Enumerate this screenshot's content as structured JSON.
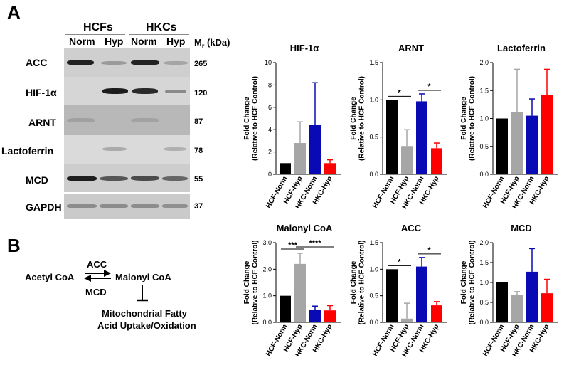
{
  "panel_a_label": "A",
  "panel_b_label": "B",
  "blot": {
    "groups": [
      "HCFs",
      "HKCs"
    ],
    "conditions": [
      "Norm",
      "Hyp",
      "Norm",
      "Hyp"
    ],
    "mr_header_main": "M",
    "mr_header_sub": "r",
    "mr_header_unit": "(kDa)",
    "rows": [
      {
        "label": "ACC",
        "mw": "265"
      },
      {
        "label": "HIF-1α",
        "mw": "120"
      },
      {
        "label": "ARNT",
        "mw": "87"
      },
      {
        "label": "Lactoferrin",
        "mw": "78"
      },
      {
        "label": "MCD",
        "mw": "55"
      },
      {
        "label": "GAPDH",
        "mw": "37"
      }
    ]
  },
  "pathway": {
    "substrate": "Acetyl CoA",
    "product": "Malonyl CoA",
    "forward_enzyme": "ACC",
    "reverse_enzyme": "MCD",
    "inhibited_line1": "Mitochondrial Fatty",
    "inhibited_line2": "Acid Uptake/Oxidation"
  },
  "colors": {
    "HCF-Norm": "#000000",
    "HCF-Hyp": "#a6a6a6",
    "HKC-Norm": "#0a0ab4",
    "HKC-Hyp": "#ff0000"
  },
  "chart_data": [
    {
      "type": "bar",
      "title": "HIF-1α",
      "ylabel": "Fold Change (Relative to HCF Control)",
      "categories": [
        "HCF-Norm",
        "HCF-Hyp",
        "HKC-Norm",
        "HKC-Hyp"
      ],
      "values": [
        1.0,
        2.8,
        4.4,
        1.0
      ],
      "errors": [
        0,
        1.9,
        3.8,
        0.3
      ],
      "ylim": [
        0,
        10
      ],
      "yticks": [
        "0",
        "2",
        "4",
        "6",
        "8",
        "10"
      ],
      "significance": []
    },
    {
      "type": "bar",
      "title": "ARNT",
      "ylabel": "Fold Change (Relative to HCF Control)",
      "categories": [
        "HCF-Norm",
        "HCF-Hyp",
        "HKC-Norm",
        "HKC-Hyp"
      ],
      "values": [
        1.0,
        0.38,
        0.98,
        0.35
      ],
      "errors": [
        0,
        0.22,
        0.1,
        0.07
      ],
      "ylim": [
        0,
        1.5
      ],
      "yticks": [
        "0.0",
        "0.5",
        "1.0",
        "1.5"
      ],
      "significance": [
        {
          "from": 0,
          "to": 1,
          "label": "*"
        },
        {
          "from": 2,
          "to": 3,
          "label": "*"
        }
      ]
    },
    {
      "type": "bar",
      "title": "Lactoferrin",
      "ylabel": "Fold Change (Relative to HCF Control)",
      "categories": [
        "HCF-Norm",
        "HCF-Hyp",
        "HKC-Norm",
        "HKC-Hyp"
      ],
      "values": [
        1.0,
        1.12,
        1.05,
        1.42
      ],
      "errors": [
        0,
        0.76,
        0.3,
        0.46
      ],
      "ylim": [
        0,
        2.0
      ],
      "yticks": [
        "0.0",
        "0.5",
        "1.0",
        "1.5",
        "2.0"
      ],
      "significance": []
    },
    {
      "type": "bar",
      "title": "Malonyl CoA",
      "ylabel": "Fold Change (Relative to HCF Control)",
      "categories": [
        "HCF-Norm",
        "HCF-Hyp",
        "HKC-Norm",
        "HKC-Hyp"
      ],
      "values": [
        1.0,
        2.2,
        0.47,
        0.45
      ],
      "errors": [
        0,
        0.4,
        0.14,
        0.18
      ],
      "ylim": [
        0,
        3.0
      ],
      "yticks": [
        "0.0",
        "1.0",
        "2.0",
        "3.0"
      ],
      "significance": [
        {
          "from": 0,
          "to": 1,
          "label": "***"
        },
        {
          "from": 1,
          "to": 3,
          "label": "****"
        }
      ]
    },
    {
      "type": "bar",
      "title": "ACC",
      "ylabel": "Fold Change (Relative to HCF Control)",
      "categories": [
        "HCF-Norm",
        "HCF-Hyp",
        "HKC-Norm",
        "HKC-Hyp"
      ],
      "values": [
        1.0,
        0.07,
        1.05,
        0.32
      ],
      "errors": [
        0,
        0.29,
        0.17,
        0.07
      ],
      "ylim": [
        0,
        1.5
      ],
      "yticks": [
        "0.0",
        "0.5",
        "1.0",
        "1.5"
      ],
      "significance": [
        {
          "from": 0,
          "to": 1,
          "label": "*"
        },
        {
          "from": 2,
          "to": 3,
          "label": "*"
        }
      ]
    },
    {
      "type": "bar",
      "title": "MCD",
      "ylabel": "Fold Change (Relative to HCF Control)",
      "categories": [
        "HCF-Norm",
        "HCF-Hyp",
        "HKC-Norm",
        "HKC-Hyp"
      ],
      "values": [
        1.0,
        0.68,
        1.27,
        0.73
      ],
      "errors": [
        0,
        0.09,
        0.58,
        0.35
      ],
      "ylim": [
        0,
        2.0
      ],
      "yticks": [
        "0.0",
        "0.5",
        "1.0",
        "1.5",
        "2.0"
      ],
      "significance": []
    }
  ]
}
